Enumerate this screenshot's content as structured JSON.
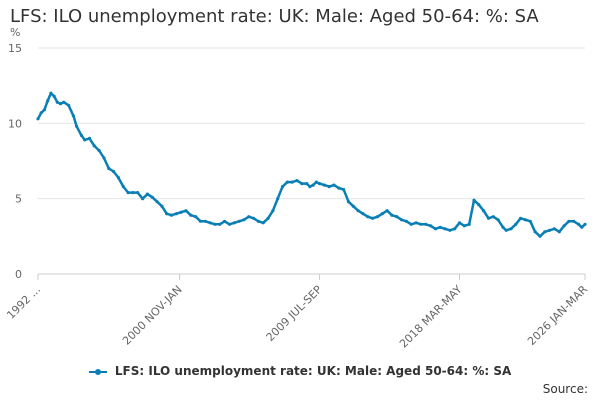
{
  "chart_data": {
    "type": "line",
    "title": "LFS: ILO unemployment rate: UK: Male: Aged 50-64: %: SA",
    "ylabel": "%",
    "xlabel": "",
    "ylim": [
      0,
      15
    ],
    "yticks": [
      0,
      5,
      10,
      15
    ],
    "x_tick_labels": [
      "1992 ...",
      "2000 NOV-JAN",
      "2009 JUL-SEP",
      "2018 MAR-MAY",
      "2026 JAN-MAR"
    ],
    "x_tick_years": [
      1992.1,
      2000.9,
      2009.6,
      2018.3,
      2026.1
    ],
    "grid": true,
    "legend_position": "bottom",
    "color": "#0a7fb5",
    "series": [
      {
        "name": "LFS: ILO unemployment rate: UK: Male: Aged 50-64: %: SA",
        "x": [
          1992.1,
          1992.3,
          1992.5,
          1992.7,
          1992.9,
          1993.1,
          1993.3,
          1993.5,
          1993.7,
          1994.0,
          1994.3,
          1994.5,
          1994.8,
          1995.0,
          1995.3,
          1995.6,
          1995.9,
          1996.2,
          1996.5,
          1996.8,
          1997.1,
          1997.4,
          1997.7,
          1998.0,
          1998.3,
          1998.6,
          1998.9,
          1999.2,
          1999.5,
          1999.8,
          2000.1,
          2000.4,
          2000.7,
          2001.0,
          2001.3,
          2001.6,
          2001.9,
          2002.2,
          2002.5,
          2002.8,
          2003.1,
          2003.4,
          2003.7,
          2004.0,
          2004.3,
          2004.6,
          2004.9,
          2005.2,
          2005.5,
          2005.8,
          2006.1,
          2006.4,
          2006.7,
          2007.0,
          2007.3,
          2007.6,
          2007.9,
          2008.2,
          2008.5,
          2008.8,
          2009.0,
          2009.2,
          2009.4,
          2009.6,
          2009.9,
          2010.2,
          2010.5,
          2010.8,
          2011.1,
          2011.4,
          2011.7,
          2012.0,
          2012.3,
          2012.6,
          2012.9,
          2013.2,
          2013.5,
          2013.8,
          2014.1,
          2014.4,
          2014.7,
          2015.0,
          2015.3,
          2015.6,
          2015.9,
          2016.2,
          2016.5,
          2016.8,
          2017.1,
          2017.4,
          2017.7,
          2018.0,
          2018.3,
          2018.6,
          2018.9,
          2019.2,
          2019.5,
          2019.8,
          2020.1,
          2020.4,
          2020.7,
          2021.0,
          2021.2,
          2021.5,
          2021.8,
          2022.1,
          2022.4,
          2022.7,
          2023.0,
          2023.3,
          2023.6,
          2023.9,
          2024.2,
          2024.5,
          2024.8,
          2025.1,
          2025.4,
          2025.7,
          2025.9,
          2026.1
        ],
        "values": [
          10.3,
          10.7,
          10.9,
          11.5,
          12.0,
          11.8,
          11.4,
          11.3,
          11.4,
          11.2,
          10.5,
          9.8,
          9.2,
          8.9,
          9.0,
          8.5,
          8.2,
          7.7,
          7.0,
          6.8,
          6.4,
          5.8,
          5.4,
          5.4,
          5.4,
          5.0,
          5.3,
          5.1,
          4.8,
          4.5,
          4.0,
          3.9,
          4.0,
          4.1,
          4.2,
          3.9,
          3.8,
          3.5,
          3.5,
          3.4,
          3.3,
          3.3,
          3.5,
          3.3,
          3.4,
          3.5,
          3.6,
          3.8,
          3.7,
          3.5,
          3.4,
          3.7,
          4.2,
          5.0,
          5.8,
          6.1,
          6.1,
          6.2,
          6.0,
          6.0,
          5.8,
          5.9,
          6.1,
          6.0,
          5.9,
          5.8,
          5.9,
          5.7,
          5.6,
          4.8,
          4.5,
          4.2,
          4.0,
          3.8,
          3.7,
          3.8,
          4.0,
          4.2,
          3.9,
          3.8,
          3.6,
          3.5,
          3.3,
          3.4,
          3.3,
          3.3,
          3.2,
          3.0,
          3.1,
          3.0,
          2.9,
          3.0,
          3.4,
          3.2,
          3.3,
          4.9,
          4.6,
          4.2,
          3.7,
          3.8,
          3.6,
          3.1,
          2.9,
          3.0,
          3.3,
          3.7,
          3.6,
          3.5,
          2.8,
          2.5,
          2.8,
          2.9,
          3.0,
          2.8,
          3.2,
          3.5,
          3.5,
          3.3,
          3.1,
          3.3
        ]
      }
    ]
  },
  "legend_label": "LFS: ILO unemployment rate: UK: Male: Aged 50-64: %: SA",
  "source_label": "Source:"
}
